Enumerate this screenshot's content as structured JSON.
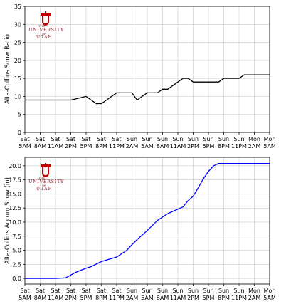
{
  "logo": {
    "line1": "THE",
    "line2": "UNIVERSITY",
    "line3": "OF",
    "line4": "UTAH",
    "color": "#be0000"
  },
  "chart_data": [
    {
      "type": "line",
      "ylabel": "Alta-Collins Snow Ratio",
      "xlabel": "",
      "ylim": [
        0,
        35
      ],
      "yticks": [
        "0",
        "5",
        "10",
        "15",
        "20",
        "25",
        "30",
        "35"
      ],
      "ytick_values": [
        0,
        5,
        10,
        15,
        20,
        25,
        30,
        35
      ],
      "grid": true,
      "line_color": "#000000",
      "xtick_labels": [
        [
          "Sat",
          "5AM"
        ],
        [
          "Sat",
          "8AM"
        ],
        [
          "Sat",
          "11AM"
        ],
        [
          "Sat",
          "2PM"
        ],
        [
          "Sat",
          "5PM"
        ],
        [
          "Sat",
          "8PM"
        ],
        [
          "Sat",
          "11PM"
        ],
        [
          "Sun",
          "2AM"
        ],
        [
          "Sun",
          "5AM"
        ],
        [
          "Sun",
          "8AM"
        ],
        [
          "Sun",
          "11AM"
        ],
        [
          "Sun",
          "2PM"
        ],
        [
          "Sun",
          "5PM"
        ],
        [
          "Sun",
          "8PM"
        ],
        [
          "Sun",
          "11PM"
        ],
        [
          "Mon",
          "2AM"
        ],
        [
          "Mon",
          "5AM"
        ]
      ],
      "x_hours": [
        0,
        3,
        6,
        9,
        12,
        13,
        14,
        15,
        16,
        17,
        18,
        19,
        20,
        21,
        22,
        23,
        24,
        25,
        26,
        27,
        28,
        29,
        30,
        31,
        32,
        33,
        34,
        35,
        36,
        37,
        38,
        39,
        40,
        41,
        42,
        43,
        44,
        45,
        46,
        47,
        48
      ],
      "y": [
        9,
        9,
        9,
        9,
        10,
        9,
        8,
        8,
        9,
        10,
        11,
        11,
        11,
        11,
        9,
        10,
        11,
        11,
        11,
        12,
        12,
        13,
        14,
        15,
        15,
        14,
        14,
        14,
        14,
        14,
        14,
        15,
        15,
        15,
        15,
        16,
        16,
        16,
        16,
        16,
        16
      ]
    },
    {
      "type": "line",
      "ylabel": "Alta-Collins Accum Snow (in)",
      "xlabel": "",
      "ylim": [
        -1.0,
        21.5
      ],
      "yticks": [
        "0.0",
        "2.5",
        "5.0",
        "7.5",
        "10.0",
        "12.5",
        "15.0",
        "17.5",
        "20.0"
      ],
      "ytick_values": [
        0,
        2.5,
        5,
        7.5,
        10,
        12.5,
        15,
        17.5,
        20
      ],
      "grid": true,
      "line_color": "#0000ff",
      "xtick_labels": [
        [
          "Sat",
          "5AM"
        ],
        [
          "Sat",
          "8AM"
        ],
        [
          "Sat",
          "11AM"
        ],
        [
          "Sat",
          "2PM"
        ],
        [
          "Sat",
          "5PM"
        ],
        [
          "Sat",
          "8PM"
        ],
        [
          "Sat",
          "11PM"
        ],
        [
          "Sun",
          "2AM"
        ],
        [
          "Sun",
          "5AM"
        ],
        [
          "Sun",
          "8AM"
        ],
        [
          "Sun",
          "11AM"
        ],
        [
          "Sun",
          "2PM"
        ],
        [
          "Sun",
          "5PM"
        ],
        [
          "Sun",
          "8PM"
        ],
        [
          "Sun",
          "11PM"
        ],
        [
          "Mon",
          "2AM"
        ],
        [
          "Mon",
          "5AM"
        ]
      ],
      "x_hours": [
        0,
        3,
        6,
        8,
        9,
        10,
        12,
        13,
        15,
        18,
        20,
        21,
        22,
        24,
        26,
        28,
        29,
        30,
        31,
        32,
        33,
        34,
        35,
        36,
        37,
        38,
        39,
        40,
        41,
        42,
        48
      ],
      "y": [
        0,
        0,
        0,
        0.1,
        0.6,
        1.1,
        1.8,
        2.1,
        3.0,
        3.8,
        5.0,
        6.0,
        6.9,
        8.5,
        10.3,
        11.5,
        11.9,
        12.3,
        12.7,
        13.8,
        14.6,
        16.1,
        17.7,
        19.0,
        20.0,
        20.4,
        20.4,
        20.4,
        20.4,
        20.4,
        20.4
      ]
    }
  ]
}
